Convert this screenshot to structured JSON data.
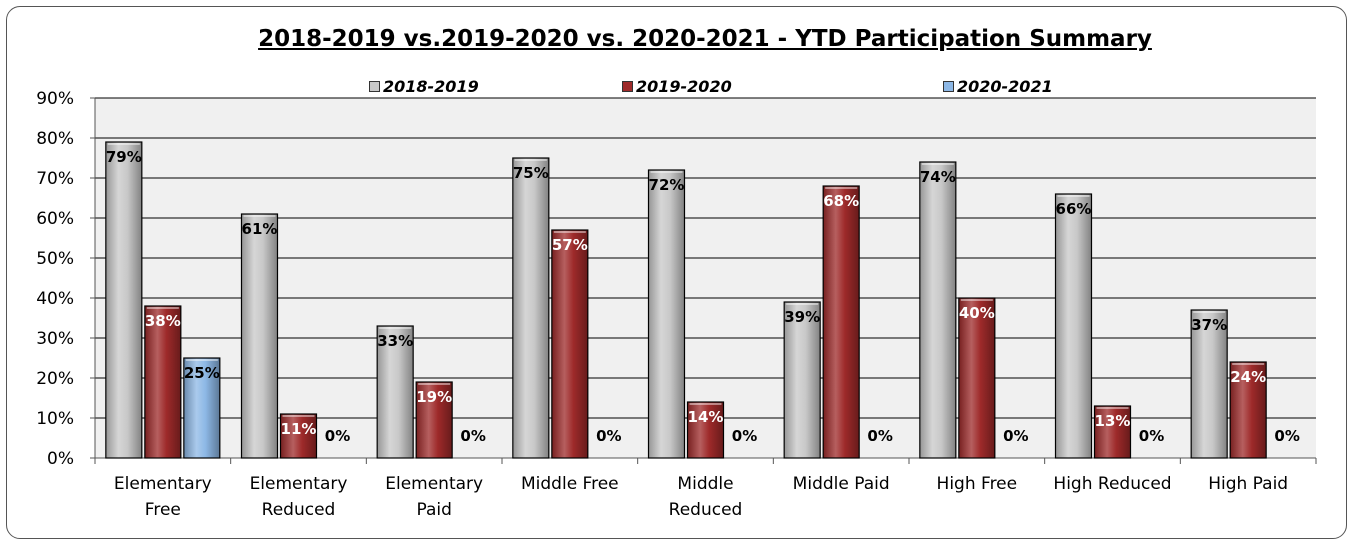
{
  "chart_data": {
    "type": "bar",
    "title": "2018-2019 vs.2019-2020 vs. 2020-2021 - YTD Participation Summary",
    "categories": [
      [
        "Elementary",
        "Free"
      ],
      [
        "Elementary",
        "Reduced"
      ],
      [
        "Elementary",
        "Paid"
      ],
      [
        "Middle Free"
      ],
      [
        "Middle",
        "Reduced"
      ],
      [
        "Middle Paid"
      ],
      [
        "High Free"
      ],
      [
        "High Reduced"
      ],
      [
        "High Paid"
      ]
    ],
    "series": [
      {
        "name": "2018-2019",
        "color": "#c8c8c8",
        "values": [
          79,
          61,
          33,
          75,
          72,
          39,
          74,
          66,
          37
        ],
        "labels": [
          "79%",
          "61%",
          "33%",
          "75%",
          "72%",
          "39%",
          "74%",
          "66%",
          "37%"
        ],
        "label_color": "#000000"
      },
      {
        "name": "2019-2020",
        "color": "#9e2a2a",
        "values": [
          38,
          11,
          19,
          57,
          14,
          68,
          40,
          13,
          24
        ],
        "labels": [
          "38%",
          "11%",
          "19%",
          "57%",
          "14%",
          "68%",
          "40%",
          "13%",
          "24%"
        ],
        "label_color": "#ffffff"
      },
      {
        "name": "2020-2021",
        "color": "#8db8e6",
        "values": [
          25,
          0,
          0,
          0,
          0,
          0,
          0,
          0,
          0
        ],
        "labels": [
          "25%",
          "0%",
          "0%",
          "0%",
          "0%",
          "0%",
          "0%",
          "0%",
          "0%"
        ],
        "label_color": "#000000"
      }
    ],
    "ylim": [
      0,
      90
    ],
    "yticks": [
      "0%",
      "10%",
      "20%",
      "30%",
      "40%",
      "50%",
      "60%",
      "70%",
      "80%",
      "90%"
    ],
    "ytick_values": [
      0,
      10,
      20,
      30,
      40,
      50,
      60,
      70,
      80,
      90
    ],
    "grid": true,
    "plot_background": "#f0f0f0",
    "legend_position": "top"
  }
}
